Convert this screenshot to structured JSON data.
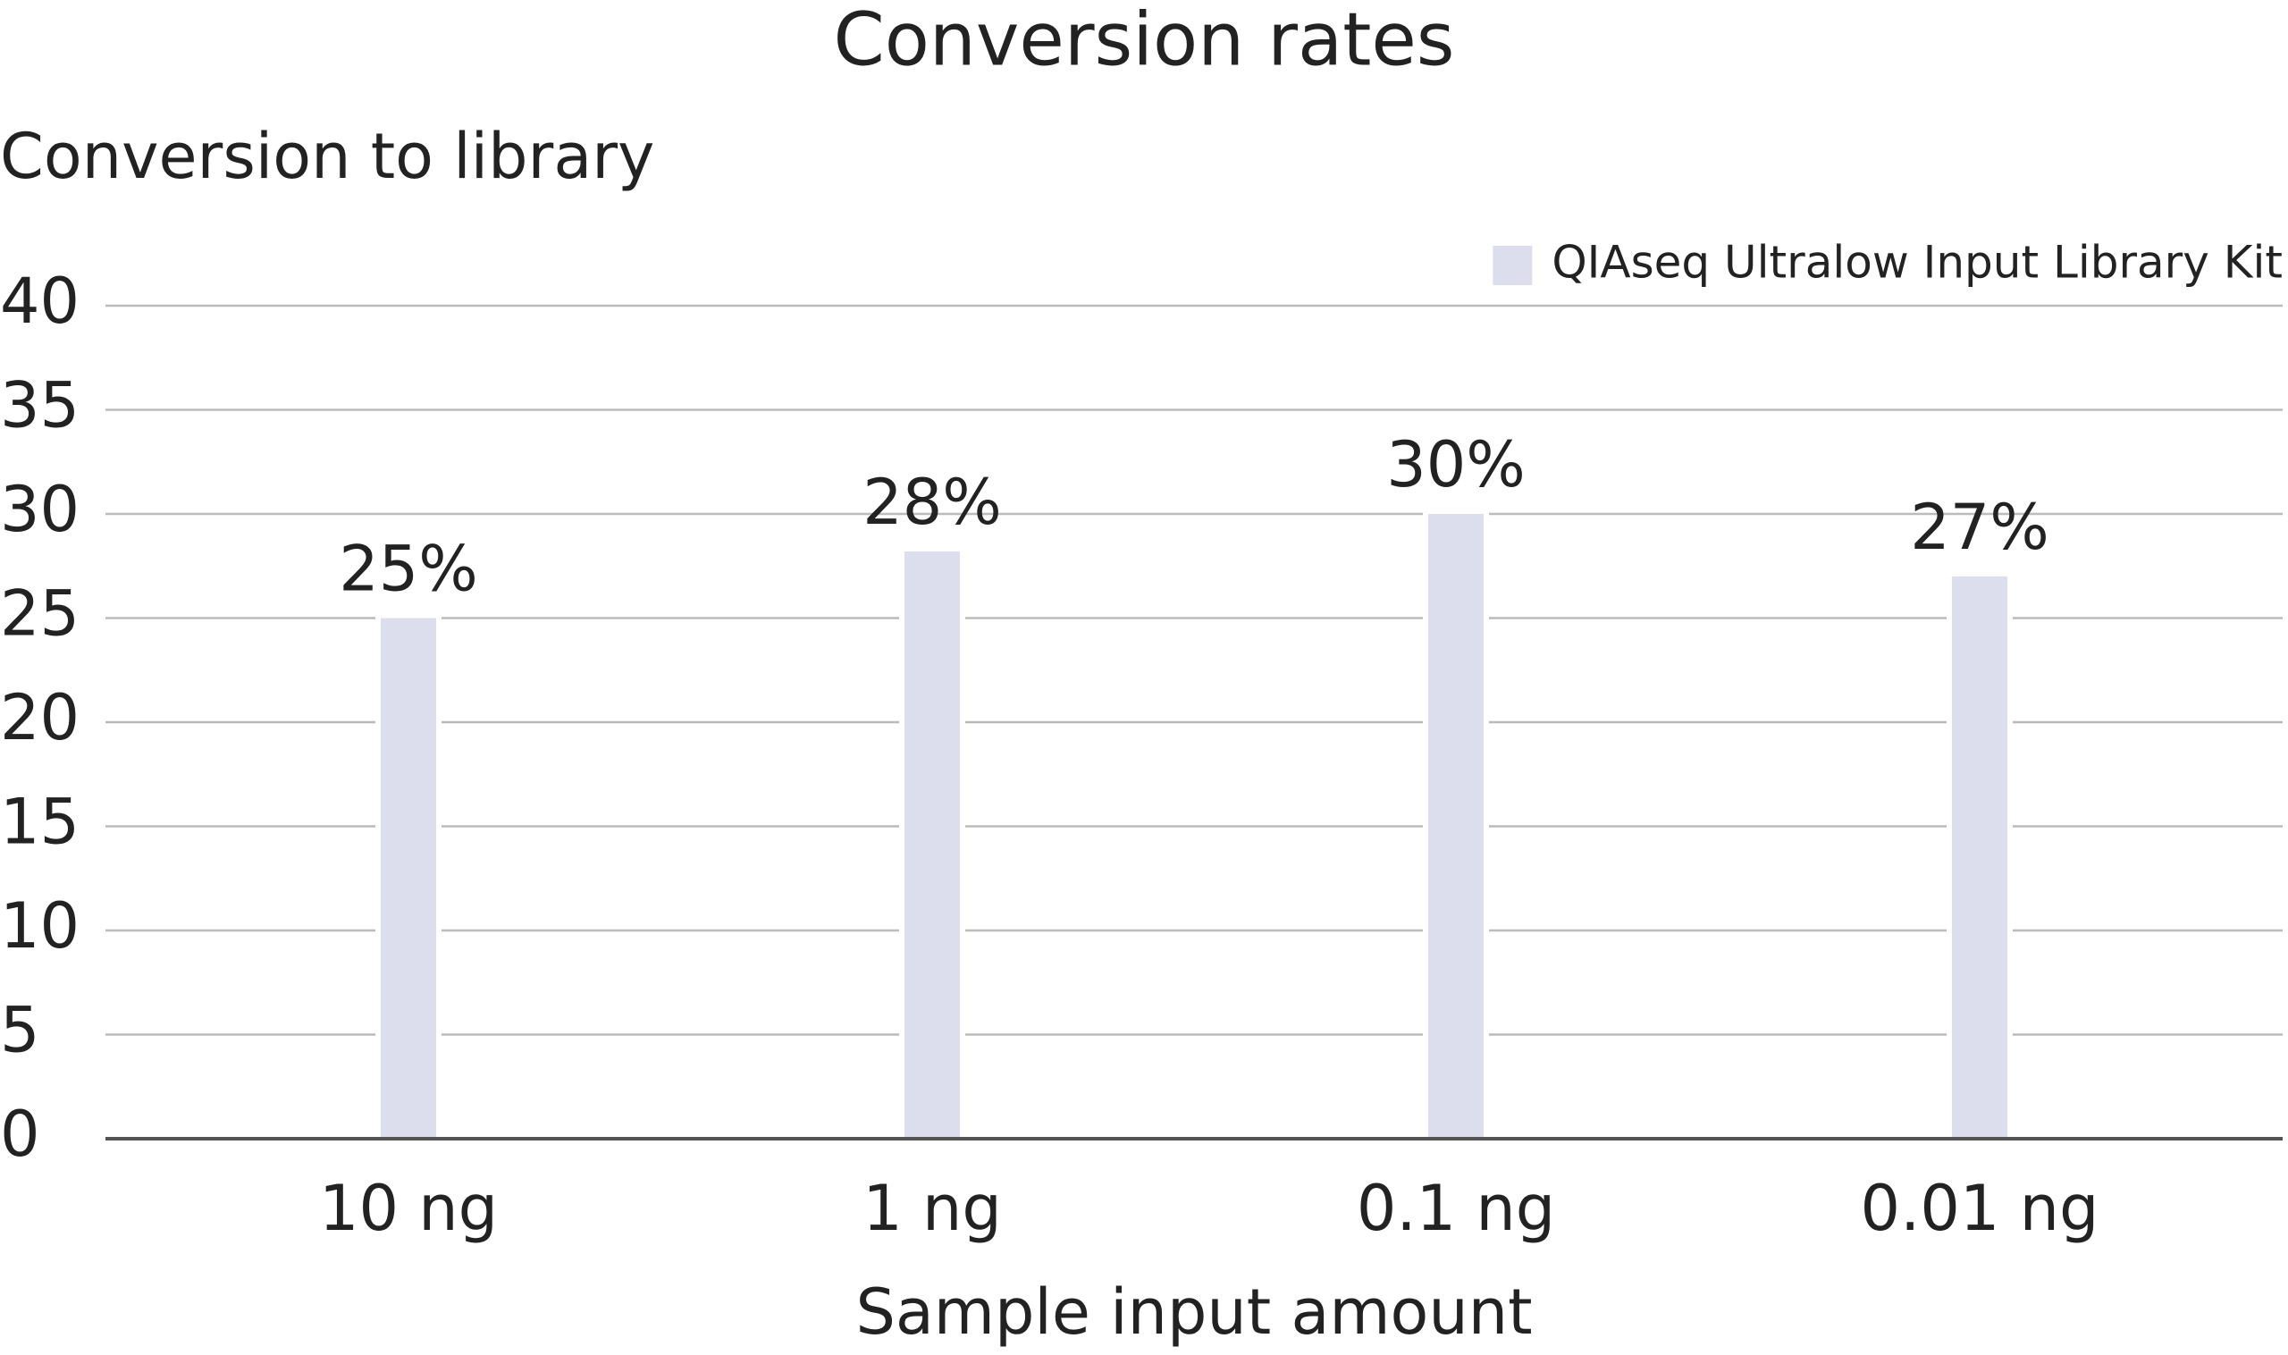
{
  "chart_data": {
    "type": "bar",
    "title": "Conversion rates",
    "y_label": "Conversion to library",
    "x_label": "Sample input amount",
    "categories": [
      "10 ng",
      "1 ng",
      "0.1 ng",
      "0.01 ng"
    ],
    "series": [
      {
        "name": "QIAseq Ultralow Input Library Kit",
        "color": "#dcdeed",
        "values": [
          25,
          28.2,
          30,
          27
        ],
        "value_labels": [
          "25%",
          "28%",
          "30%",
          "27%"
        ]
      }
    ],
    "ylim": [
      0,
      40
    ],
    "yticks": [
      0,
      5,
      10,
      15,
      20,
      25,
      30,
      35,
      40
    ],
    "grid": true,
    "legend": "upper right"
  }
}
